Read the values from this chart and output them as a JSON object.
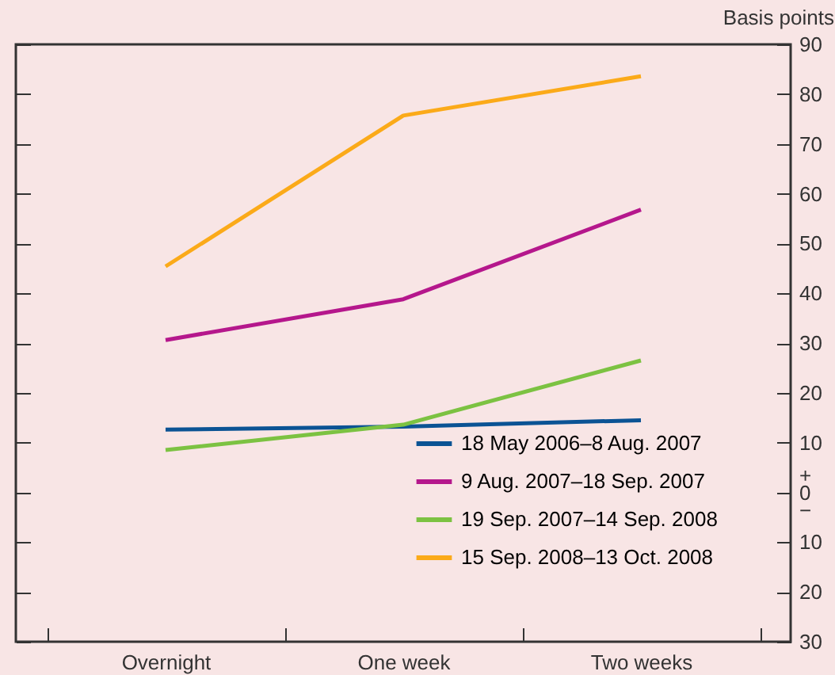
{
  "chart_data": {
    "type": "line",
    "ylabel": "Basis points",
    "categories": [
      "Overnight",
      "One week",
      "Two weeks"
    ],
    "series": [
      {
        "name": "18 May 2006–8 Aug. 2007",
        "color": "#0b5394",
        "values": [
          12.6,
          13.2,
          14.5
        ]
      },
      {
        "name": "9 Aug. 2007–18 Sep. 2007",
        "color": "#b5178c",
        "values": [
          30.6,
          38.8,
          56.8
        ]
      },
      {
        "name": "19 Sep. 2007–14 Sep. 2008",
        "color": "#7cc242",
        "values": [
          8.5,
          13.6,
          26.5
        ]
      },
      {
        "name": "15 Sep. 2008–13 Oct. 2008",
        "color": "#fbaa19",
        "values": [
          45.4,
          75.7,
          83.6
        ]
      }
    ],
    "ylim": [
      -30,
      90
    ],
    "yticks": [
      {
        "value": -30,
        "label": "30"
      },
      {
        "value": -20,
        "label": "20"
      },
      {
        "value": -10,
        "label": "10"
      },
      {
        "value": 0,
        "label": "+\n0\n−"
      },
      10,
      20,
      30,
      40,
      50,
      60,
      70,
      80,
      90
    ],
    "grid": false,
    "legend": "bottom right",
    "marker": "none",
    "line_style": "solid"
  }
}
